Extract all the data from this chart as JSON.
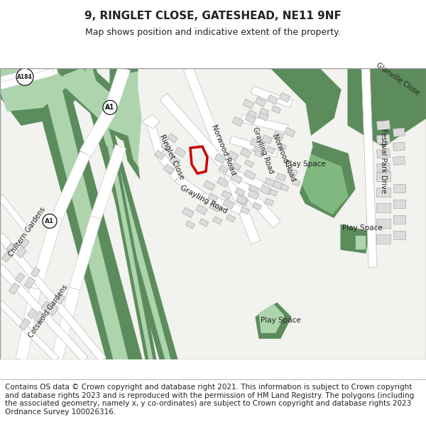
{
  "title": "9, RINGLET CLOSE, GATESHEAD, NE11 9NF",
  "subtitle": "Map shows position and indicative extent of the property.",
  "footer": "Contains OS data © Crown copyright and database right 2021. This information is subject to Crown copyright and database rights 2023 and is reproduced with the permission of HM Land Registry. The polygons (including the associated geometry, namely x, y co-ordinates) are subject to Crown copyright and database rights 2023 Ordnance Survey 100026316.",
  "map_bg": "#f2f2ee",
  "green_dark": "#5c8c5c",
  "green_light": "#aed4ae",
  "green_med": "#80b880",
  "building_color": "#dcdcdc",
  "building_border": "#aaaaaa",
  "red_plot": "#cc0000",
  "label_color": "#222222",
  "road_white": "#ffffff",
  "title_fontsize": 11,
  "subtitle_fontsize": 9,
  "footer_fontsize": 7.5
}
